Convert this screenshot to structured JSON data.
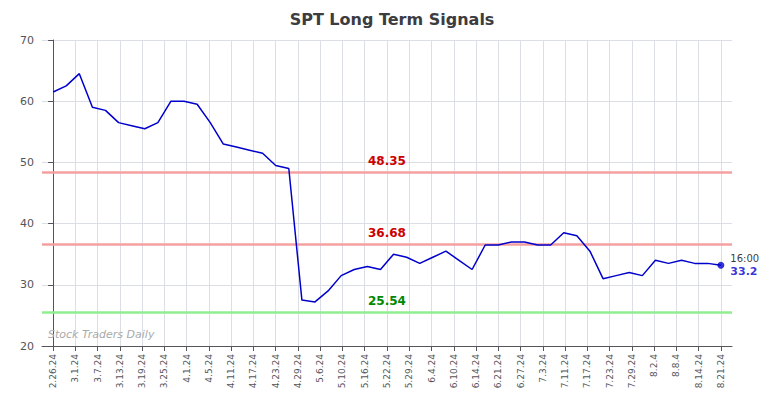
{
  "chart_data": {
    "type": "line",
    "title": "SPT Long Term Signals",
    "x": [
      0,
      0.5882,
      1.1765,
      1.7647,
      2.3529,
      2.9412,
      3.5294,
      4.1176,
      4.7059,
      5.2941,
      5.8824,
      6.4706,
      7.0588,
      7.6471,
      8.2353,
      8.8235,
      9.4118,
      10,
      10.5882,
      11.1765,
      11.7647,
      12.3529,
      12.9412,
      13.5294,
      14.1176,
      14.7059,
      15.2941,
      15.8824,
      16.4706,
      17.0588,
      17.6471,
      18.2353,
      18.8235,
      19.4118,
      20,
      20.5882,
      21.1765,
      21.7647,
      22.3529,
      22.9412,
      23.5294,
      24.1176,
      24.7059,
      25.2941,
      25.8824,
      26.4706,
      27.0588,
      27.6471,
      28.2353,
      28.8235,
      29.4118,
      30
    ],
    "values": [
      61.5,
      62.5,
      64.5,
      59.0,
      58.5,
      56.5,
      56.0,
      55.5,
      56.5,
      60.0,
      60.0,
      59.5,
      56.5,
      53.0,
      52.5,
      52.0,
      51.5,
      49.5,
      49.0,
      27.5,
      27.2,
      29.0,
      31.5,
      32.5,
      33.0,
      32.5,
      35.0,
      34.5,
      33.5,
      34.5,
      35.5,
      34.0,
      32.5,
      36.5,
      36.5,
      37.0,
      37.0,
      36.5,
      36.5,
      38.5,
      38.0,
      35.5,
      31.0,
      31.5,
      32.0,
      31.5,
      34.0,
      33.5,
      34.0,
      33.5,
      33.5,
      33.2
    ],
    "color": "#0000cc",
    "xlim": [
      -0.5,
      30.5
    ],
    "xticks": [
      {
        "value": 0,
        "label": "2.26.24"
      },
      {
        "value": 1,
        "label": "3.1.24"
      },
      {
        "value": 2,
        "label": "3.7.24"
      },
      {
        "value": 3,
        "label": "3.13.24"
      },
      {
        "value": 4,
        "label": "3.19.24"
      },
      {
        "value": 5,
        "label": "3.25.24"
      },
      {
        "value": 6,
        "label": "4.1.24"
      },
      {
        "value": 7,
        "label": "4.5.24"
      },
      {
        "value": 8,
        "label": "4.11.24"
      },
      {
        "value": 9,
        "label": "4.17.24"
      },
      {
        "value": 10,
        "label": "4.23.24"
      },
      {
        "value": 11,
        "label": "4.29.24"
      },
      {
        "value": 12,
        "label": "5.6.24"
      },
      {
        "value": 13,
        "label": "5.10.24"
      },
      {
        "value": 14,
        "label": "5.16.24"
      },
      {
        "value": 15,
        "label": "5.22.24"
      },
      {
        "value": 16,
        "label": "5.29.24"
      },
      {
        "value": 17,
        "label": "6.4.24"
      },
      {
        "value": 18,
        "label": "6.10.24"
      },
      {
        "value": 19,
        "label": "6.14.24"
      },
      {
        "value": 20,
        "label": "6.21.24"
      },
      {
        "value": 21,
        "label": "6.27.24"
      },
      {
        "value": 22,
        "label": "7.3.24"
      },
      {
        "value": 23,
        "label": "7.11.24"
      },
      {
        "value": 24,
        "label": "7.17.24"
      },
      {
        "value": 25,
        "label": "7.23.24"
      },
      {
        "value": 26,
        "label": "7.29.24"
      },
      {
        "value": 27,
        "label": "8.2.4"
      },
      {
        "value": 28,
        "label": "8.8.4"
      },
      {
        "value": 29,
        "label": "8.14.24"
      },
      {
        "value": 30,
        "label": "8.21.24"
      }
    ],
    "ylim": [
      20,
      70
    ],
    "yticks": [
      20,
      30,
      40,
      50,
      60,
      70
    ],
    "grid": true,
    "hlines": [
      {
        "y": 48.35,
        "color": "#f4a0a0",
        "label": "48.35",
        "label_color": "#cc0000"
      },
      {
        "y": 36.68,
        "color": "#f4a0a0",
        "label": "36.68",
        "label_color": "#cc0000"
      },
      {
        "y": 25.54,
        "color": "#90ee90",
        "label": "25.54",
        "label_color": "#008800"
      }
    ],
    "annotations": [
      {
        "text": "Stock Traders Daily",
        "color": "#aaaaaa"
      }
    ],
    "last_point": {
      "label": "16:00",
      "value_label": "33.2",
      "color": "#0000cc"
    }
  }
}
